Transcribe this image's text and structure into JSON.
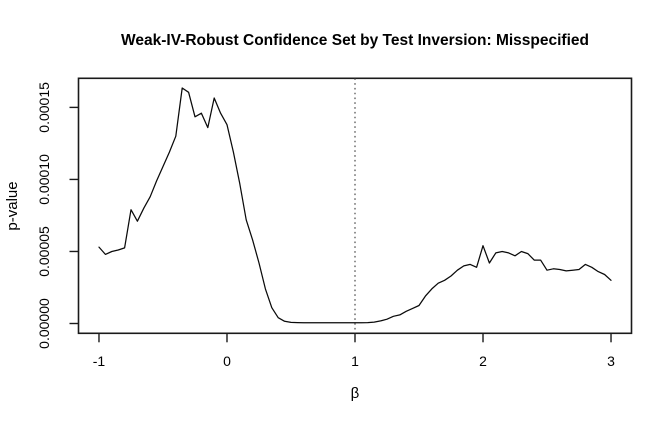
{
  "colors": {
    "background": "#ffffff",
    "line": "#000000",
    "box": "#1a1a1a",
    "reference_line": "#3a3a3a",
    "text": "#000000"
  },
  "chart_data": {
    "type": "line",
    "title": "Weak-IV-Robust Confidence Set by Test Inversion: Misspecified",
    "xlabel": "β",
    "ylabel": "p-value",
    "xlim": [
      -1.16,
      3.16
    ],
    "ylim": [
      -6.8e-06,
      0.0001702
    ],
    "x_ticks": [
      -1,
      0,
      1,
      2,
      3
    ],
    "x_tick_labels": [
      "-1",
      "0",
      "1",
      "2",
      "3"
    ],
    "y_ticks": [
      0.0,
      5e-05,
      0.0001,
      0.00015
    ],
    "y_tick_labels": [
      "0.00000",
      "0.00005",
      "0.00010",
      "0.00015"
    ],
    "grid": false,
    "legend": null,
    "reference_line": {
      "orientation": "vertical",
      "x": 1,
      "style": "dotted"
    },
    "series": [
      {
        "name": "p-value curve",
        "x": [
          -1.0,
          -0.95,
          -0.9,
          -0.85,
          -0.8,
          -0.75,
          -0.7,
          -0.65,
          -0.6,
          -0.55,
          -0.5,
          -0.45,
          -0.4,
          -0.35,
          -0.3,
          -0.25,
          -0.2,
          -0.15,
          -0.1,
          -0.05,
          0.0,
          0.05,
          0.1,
          0.15,
          0.2,
          0.25,
          0.3,
          0.35,
          0.4,
          0.45,
          0.5,
          0.55,
          0.6,
          0.65,
          0.7,
          0.75,
          0.8,
          0.85,
          0.9,
          0.95,
          1.0,
          1.05,
          1.1,
          1.15,
          1.2,
          1.25,
          1.3,
          1.35,
          1.4,
          1.45,
          1.5,
          1.55,
          1.6,
          1.65,
          1.7,
          1.75,
          1.8,
          1.85,
          1.9,
          1.95,
          2.0,
          2.05,
          2.1,
          2.15,
          2.2,
          2.25,
          2.3,
          2.35,
          2.4,
          2.45,
          2.5,
          2.55,
          2.6,
          2.65,
          2.7,
          2.75,
          2.8,
          2.85,
          2.9,
          2.95,
          3.0
        ],
        "y": [
          5.3e-05,
          4.8e-05,
          5e-05,
          5.1e-05,
          5.25e-05,
          7.9e-05,
          7.1e-05,
          8e-05,
          8.8e-05,
          9.9e-05,
          0.000109,
          0.000119,
          0.00013,
          0.0001635,
          0.0001605,
          0.0001435,
          0.000146,
          0.000136,
          0.0001565,
          0.000146,
          0.000138,
          0.000119,
          9.7e-05,
          7.2e-05,
          5.8e-05,
          4.2e-05,
          2.4e-05,
          1.1e-05,
          4e-06,
          1.5e-06,
          8e-07,
          6e-07,
          5e-07,
          5e-07,
          5e-07,
          5e-07,
          5e-07,
          5e-07,
          5e-07,
          5e-07,
          5e-07,
          5e-07,
          6e-07,
          1e-06,
          1.8e-06,
          3e-06,
          5e-06,
          6e-06,
          8.5e-06,
          1.05e-05,
          1.25e-05,
          1.9e-05,
          2.4e-05,
          2.8e-05,
          3e-05,
          3.3e-05,
          3.7e-05,
          4e-05,
          4.1e-05,
          3.9e-05,
          5.4e-05,
          4.2e-05,
          4.9e-05,
          5e-05,
          4.9e-05,
          4.7e-05,
          5e-05,
          4.85e-05,
          4.4e-05,
          4.4e-05,
          3.7e-05,
          3.8e-05,
          3.75e-05,
          3.65e-05,
          3.7e-05,
          3.75e-05,
          4.1e-05,
          3.9e-05,
          3.6e-05,
          3.4e-05,
          3e-05
        ]
      }
    ]
  }
}
